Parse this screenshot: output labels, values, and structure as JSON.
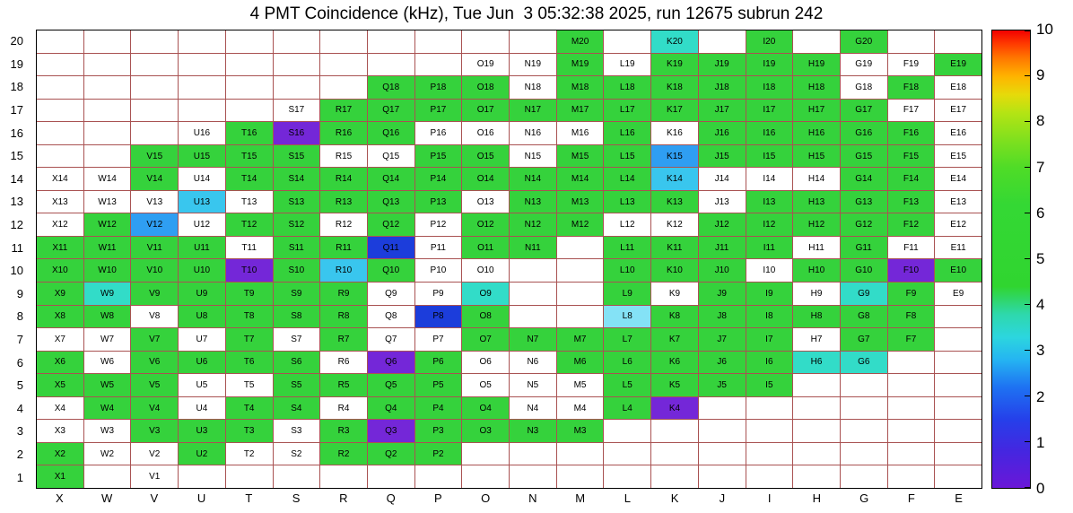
{
  "title": "4 PMT Coincidence (kHz), Tue Jun  3 05:32:38 2025, run 12675 subrun 242",
  "chart_data": {
    "type": "heatmap",
    "title": "4 PMT Coincidence (kHz), Tue Jun  3 05:32:38 2025, run 12675 subrun 242",
    "run": "12675",
    "subrun": "242",
    "timestamp": "Tue Jun  3 05:32:38 2025",
    "x_categories": [
      "X",
      "W",
      "V",
      "U",
      "T",
      "S",
      "R",
      "Q",
      "P",
      "O",
      "N",
      "M",
      "L",
      "K",
      "J",
      "I",
      "H",
      "G",
      "F",
      "E"
    ],
    "y_categories": [
      "20",
      "19",
      "18",
      "17",
      "16",
      "15",
      "14",
      "13",
      "12",
      "11",
      "10",
      "9",
      "8",
      "7",
      "6",
      "5",
      "4",
      "3",
      "2",
      "1"
    ],
    "gridline_color": "#a95252",
    "palette": {
      "g": {
        "hex": "#35d23c",
        "approx_kHz": 5
      },
      "tq": {
        "hex": "#32dcc8",
        "approx_kHz": 4
      },
      "lb": {
        "hex": "#39c6ee",
        "approx_kHz": 3.5
      },
      "sb": {
        "hex": "#2f9ef2",
        "approx_kHz": 3
      },
      "lc": {
        "hex": "#84e2f6",
        "approx_kHz": 4
      },
      "db": {
        "hex": "#1c3ddb",
        "approx_kHz": 1.5
      },
      "pu": {
        "hex": "#7427d8",
        "approx_kHz": 0.7
      },
      "w": {
        "hex": "#ffffff",
        "approx_kHz": null
      }
    },
    "cells": {
      "20": {
        "M": "g",
        "K": "tq",
        "I": "g",
        "G": "g"
      },
      "19": {
        "O": "w",
        "N": "w",
        "M": "g",
        "L": "w",
        "K": "g",
        "J": "g",
        "I": "g",
        "H": "g",
        "G": "w",
        "F": "w",
        "E": "g"
      },
      "18": {
        "Q": "g",
        "P": "g",
        "O": "g",
        "N": "w",
        "M": "g",
        "L": "g",
        "K": "g",
        "J": "g",
        "I": "g",
        "H": "g",
        "G": "w",
        "F": "g",
        "E": "w"
      },
      "17": {
        "S": "w",
        "R": "g",
        "Q": "g",
        "P": "g",
        "O": "g",
        "N": "g",
        "M": "g",
        "L": "g",
        "K": "g",
        "J": "g",
        "I": "g",
        "H": "g",
        "G": "g",
        "F": "w",
        "E": "w"
      },
      "16": {
        "U": "w",
        "T": "g",
        "S": "pu",
        "R": "g",
        "Q": "g",
        "P": "w",
        "O": "w",
        "N": "w",
        "M": "w",
        "L": "g",
        "K": "w",
        "J": "g",
        "I": "g",
        "H": "g",
        "G": "g",
        "F": "g",
        "E": "w"
      },
      "15": {
        "V": "g",
        "U": "g",
        "T": "g",
        "S": "g",
        "R": "w",
        "Q": "w",
        "P": "g",
        "O": "g",
        "N": "w",
        "M": "g",
        "L": "g",
        "K": "sb",
        "J": "g",
        "I": "g",
        "H": "g",
        "G": "g",
        "F": "g",
        "E": "w"
      },
      "14": {
        "X": "w",
        "W": "w",
        "V": "g",
        "U": "w",
        "T": "g",
        "S": "g",
        "R": "g",
        "Q": "g",
        "P": "g",
        "O": "g",
        "N": "g",
        "M": "g",
        "L": "g",
        "K": "lb",
        "J": "w",
        "I": "w",
        "H": "w",
        "G": "g",
        "F": "g",
        "E": "w"
      },
      "13": {
        "X": "w",
        "W": "w",
        "V": "w",
        "U": "lb",
        "T": "w",
        "S": "g",
        "R": "g",
        "Q": "g",
        "P": "g",
        "O": "w",
        "N": "g",
        "M": "g",
        "L": "g",
        "K": "g",
        "J": "w",
        "I": "g",
        "H": "g",
        "G": "g",
        "F": "g",
        "E": "w"
      },
      "12": {
        "X": "w",
        "W": "g",
        "V": "sb",
        "U": "w",
        "T": "g",
        "S": "g",
        "R": "w",
        "Q": "g",
        "P": "w",
        "O": "g",
        "N": "g",
        "M": "g",
        "L": "w",
        "K": "w",
        "J": "g",
        "I": "g",
        "H": "g",
        "G": "g",
        "F": "g",
        "E": "w"
      },
      "11": {
        "X": "g",
        "W": "g",
        "V": "g",
        "U": "g",
        "T": "w",
        "S": "g",
        "R": "g",
        "Q": "db",
        "P": "w",
        "O": "g",
        "N": "g",
        "L": "g",
        "K": "g",
        "J": "g",
        "I": "g",
        "H": "w",
        "G": "g",
        "F": "w",
        "E": "w"
      },
      "10": {
        "X": "g",
        "W": "g",
        "V": "g",
        "U": "g",
        "T": "pu",
        "S": "g",
        "R": "lb",
        "Q": "g",
        "P": "w",
        "O": "w",
        "L": "g",
        "K": "g",
        "J": "g",
        "I": "w",
        "H": "g",
        "G": "g",
        "F": "pu",
        "E": "g"
      },
      "9": {
        "X": "g",
        "W": "tq",
        "V": "g",
        "U": "g",
        "T": "g",
        "S": "g",
        "R": "g",
        "Q": "w",
        "P": "w",
        "O": "tq",
        "L": "g",
        "K": "w",
        "J": "g",
        "I": "g",
        "H": "w",
        "G": "tq",
        "F": "g",
        "E": "w"
      },
      "8": {
        "X": "g",
        "W": "g",
        "V": "w",
        "U": "g",
        "T": "g",
        "S": "g",
        "R": "g",
        "Q": "w",
        "P": "db",
        "O": "g",
        "L": "lc",
        "K": "g",
        "J": "g",
        "I": "g",
        "H": "g",
        "G": "g",
        "F": "g"
      },
      "7": {
        "X": "w",
        "W": "w",
        "V": "g",
        "U": "w",
        "T": "g",
        "S": "w",
        "R": "g",
        "Q": "w",
        "P": "w",
        "O": "g",
        "N": "g",
        "M": "g",
        "L": "g",
        "K": "g",
        "J": "g",
        "I": "g",
        "H": "w",
        "G": "g",
        "F": "g"
      },
      "6": {
        "X": "g",
        "W": "w",
        "V": "g",
        "U": "g",
        "T": "g",
        "S": "g",
        "R": "w",
        "Q": "pu",
        "P": "g",
        "O": "w",
        "N": "w",
        "M": "g",
        "L": "g",
        "K": "g",
        "J": "g",
        "I": "g",
        "H": "tq",
        "G": "tq"
      },
      "5": {
        "X": "g",
        "W": "g",
        "V": "g",
        "U": "w",
        "T": "w",
        "S": "g",
        "R": "g",
        "Q": "g",
        "P": "g",
        "O": "w",
        "N": "w",
        "M": "w",
        "L": "g",
        "K": "g",
        "J": "g",
        "I": "g"
      },
      "4": {
        "X": "w",
        "W": "g",
        "V": "g",
        "U": "w",
        "T": "g",
        "S": "g",
        "R": "w",
        "Q": "g",
        "P": "g",
        "O": "g",
        "N": "w",
        "M": "w",
        "L": "g",
        "K": "pu"
      },
      "3": {
        "X": "w",
        "W": "w",
        "V": "g",
        "U": "g",
        "T": "g",
        "S": "w",
        "R": "g",
        "Q": "pu",
        "P": "g",
        "O": "g",
        "N": "g",
        "M": "g"
      },
      "2": {
        "X": "g",
        "W": "w",
        "V": "w",
        "U": "g",
        "T": "w",
        "S": "w",
        "R": "g",
        "Q": "g",
        "P": "g"
      },
      "1": {
        "X": "g",
        "V": "w"
      }
    },
    "colorbar": {
      "min": 0,
      "max": 10,
      "label_values": [
        0,
        1,
        2,
        3,
        4,
        5,
        6,
        7,
        8,
        9,
        10
      ],
      "gradient": [
        {
          "color": "#6a17d8",
          "pos": 0
        },
        {
          "color": "#4526e0",
          "pos": 8
        },
        {
          "color": "#2540ea",
          "pos": 15
        },
        {
          "color": "#1e72f2",
          "pos": 22
        },
        {
          "color": "#25b4f2",
          "pos": 28
        },
        {
          "color": "#2cd6de",
          "pos": 33
        },
        {
          "color": "#2ed8ab",
          "pos": 38
        },
        {
          "color": "#30d530",
          "pos": 44
        },
        {
          "color": "#34d834",
          "pos": 62
        },
        {
          "color": "#4fdc27",
          "pos": 70
        },
        {
          "color": "#7fe01e",
          "pos": 76
        },
        {
          "color": "#b4e414",
          "pos": 82
        },
        {
          "color": "#e6da0a",
          "pos": 86
        },
        {
          "color": "#ffb300",
          "pos": 90
        },
        {
          "color": "#ff7700",
          "pos": 94
        },
        {
          "color": "#ff3c00",
          "pos": 97
        },
        {
          "color": "#f20000",
          "pos": 100
        }
      ]
    }
  }
}
